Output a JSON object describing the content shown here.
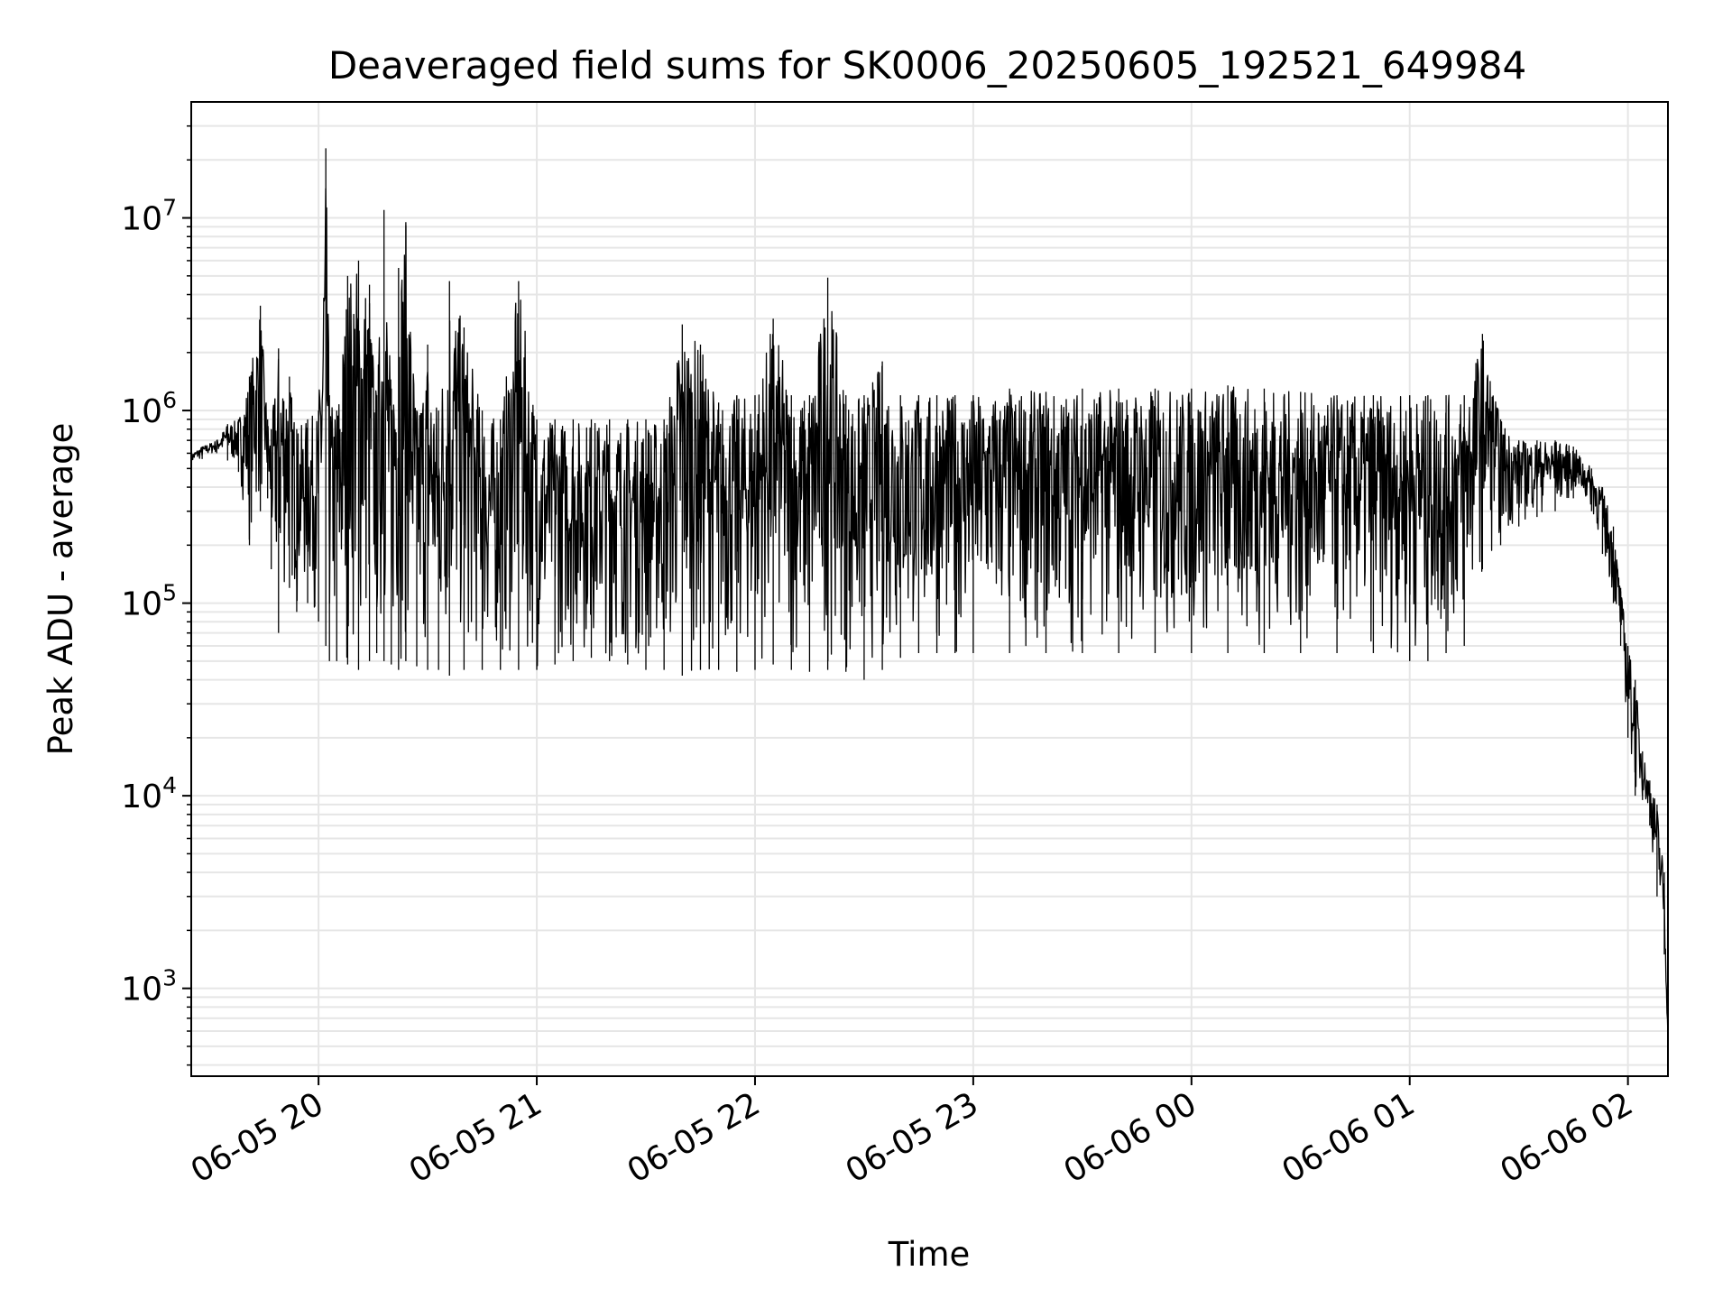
{
  "chart_data": {
    "type": "line",
    "title": "Deaveraged field sums for SK0006_20250605_192521_649984",
    "xlabel": "Time",
    "ylabel": "Peak ADU - average",
    "y_scale": "log",
    "xlim": [
      "2025-06-05T19:25",
      "2025-06-06T02:11"
    ],
    "ylim": [
      350,
      40000000
    ],
    "x_ticks": [
      {
        "time": "2025-06-05T20:00",
        "label": "06-05 20"
      },
      {
        "time": "2025-06-05T21:00",
        "label": "06-05 21"
      },
      {
        "time": "2025-06-05T22:00",
        "label": "06-05 22"
      },
      {
        "time": "2025-06-05T23:00",
        "label": "06-05 23"
      },
      {
        "time": "2025-06-06T00:00",
        "label": "06-06 00"
      },
      {
        "time": "2025-06-06T01:00",
        "label": "06-06 01"
      },
      {
        "time": "2025-06-06T02:00",
        "label": "06-06 02"
      }
    ],
    "y_ticks": [
      {
        "value": 1000,
        "base": "10",
        "exp": "3"
      },
      {
        "value": 10000,
        "base": "10",
        "exp": "4"
      },
      {
        "value": 100000,
        "base": "10",
        "exp": "5"
      },
      {
        "value": 1000000,
        "base": "10",
        "exp": "6"
      },
      {
        "value": 10000000,
        "base": "10",
        "exp": "7"
      }
    ],
    "grid": true,
    "line_color": "#000000",
    "grid_color": "#e6e6e6",
    "series": [
      {
        "x": [
          "2025-06-05T19:25",
          "2025-06-05T19:28",
          "2025-06-05T19:32",
          "2025-06-05T19:35",
          "2025-06-05T19:38",
          "2025-06-05T19:41",
          "2025-06-05T19:44",
          "2025-06-05T19:46",
          "2025-06-05T19:47",
          "2025-06-05T19:49",
          "2025-06-05T19:52",
          "2025-06-05T19:54",
          "2025-06-05T19:57",
          "2025-06-05T20:00",
          "2025-06-05T20:02",
          "2025-06-05T20:03",
          "2025-06-05T20:05",
          "2025-06-05T20:08",
          "2025-06-05T20:11",
          "2025-06-05T20:14",
          "2025-06-05T20:16",
          "2025-06-05T20:18",
          "2025-06-05T20:20",
          "2025-06-05T20:22",
          "2025-06-05T20:24",
          "2025-06-05T20:27",
          "2025-06-05T20:30",
          "2025-06-05T20:33",
          "2025-06-05T20:36",
          "2025-06-05T20:40",
          "2025-06-05T20:45",
          "2025-06-05T20:50",
          "2025-06-05T20:55",
          "2025-06-05T21:00",
          "2025-06-05T21:05",
          "2025-06-05T21:10",
          "2025-06-05T21:15",
          "2025-06-05T21:20",
          "2025-06-05T21:25",
          "2025-06-05T21:30",
          "2025-06-05T21:35",
          "2025-06-05T21:40",
          "2025-06-05T21:45",
          "2025-06-05T21:50",
          "2025-06-05T21:55",
          "2025-06-05T22:00",
          "2025-06-05T22:05",
          "2025-06-05T22:10",
          "2025-06-05T22:15",
          "2025-06-05T22:20",
          "2025-06-05T22:25",
          "2025-06-05T22:30",
          "2025-06-05T22:35",
          "2025-06-05T22:40",
          "2025-06-05T22:45",
          "2025-06-05T22:50",
          "2025-06-05T22:55",
          "2025-06-05T23:00",
          "2025-06-05T23:10",
          "2025-06-05T23:20",
          "2025-06-05T23:30",
          "2025-06-05T23:40",
          "2025-06-05T23:50",
          "2025-06-06T00:00",
          "2025-06-06T00:10",
          "2025-06-06T00:20",
          "2025-06-06T00:30",
          "2025-06-06T00:40",
          "2025-06-06T00:50",
          "2025-06-06T01:00",
          "2025-06-06T01:05",
          "2025-06-06T01:10",
          "2025-06-06T01:15",
          "2025-06-06T01:20",
          "2025-06-06T01:25",
          "2025-06-06T01:30",
          "2025-06-06T01:35",
          "2025-06-06T01:40",
          "2025-06-06T01:45",
          "2025-06-06T01:50",
          "2025-06-06T01:53",
          "2025-06-06T01:56",
          "2025-06-06T01:58",
          "2025-06-06T02:00",
          "2025-06-06T02:02",
          "2025-06-06T02:04",
          "2025-06-06T02:06",
          "2025-06-06T02:08",
          "2025-06-06T02:10",
          "2025-06-06T02:11"
        ],
        "upper": [
          600000,
          650000,
          700000,
          850000,
          900000,
          1500000,
          3500000,
          900000,
          800000,
          2100000,
          1500000,
          800000,
          900000,
          1000000,
          23000000,
          1200000,
          1000000,
          5000000,
          6000000,
          4500000,
          1200000,
          11000000,
          1300000,
          5500000,
          9500000,
          1000000,
          2200000,
          1000000,
          4700000,
          2700000,
          1000000,
          900000,
          4700000,
          900000,
          900000,
          900000,
          900000,
          900000,
          900000,
          900000,
          900000,
          2800000,
          2200000,
          1100000,
          1200000,
          1200000,
          3000000,
          1200000,
          1200000,
          4900000,
          1200000,
          1200000,
          1800000,
          1200000,
          1200000,
          1200000,
          1200000,
          1200000,
          1300000,
          1250000,
          1300000,
          1300000,
          1300000,
          1300000,
          1350000,
          1300000,
          1250000,
          1200000,
          1200000,
          1200000,
          1200000,
          1200000,
          1200000,
          2500000,
          900000,
          700000,
          700000,
          700000,
          650000,
          500000,
          400000,
          250000,
          120000,
          60000,
          40000,
          17000,
          12000,
          9000,
          4000,
          550
        ],
        "lower": [
          520000,
          560000,
          600000,
          550000,
          480000,
          200000,
          300000,
          350000,
          150000,
          70000,
          120000,
          90000,
          100000,
          80000,
          60000,
          50000,
          50000,
          48000,
          45000,
          50000,
          55000,
          50000,
          48000,
          45000,
          50000,
          47000,
          45000,
          45000,
          42000,
          45000,
          45000,
          45000,
          45000,
          45000,
          48000,
          50000,
          52000,
          50000,
          48000,
          45000,
          45000,
          42000,
          45000,
          45000,
          44000,
          45000,
          48000,
          45000,
          44000,
          45000,
          44000,
          40000,
          45000,
          52000,
          55000,
          55000,
          55000,
          55000,
          55000,
          55000,
          55000,
          55000,
          55000,
          55000,
          55000,
          55000,
          55000,
          55000,
          55000,
          50000,
          50000,
          55000,
          60000,
          150000,
          200000,
          250000,
          280000,
          300000,
          350000,
          300000,
          180000,
          100000,
          60000,
          20000,
          10000,
          9500,
          7000,
          3000,
          1500,
          550
        ]
      }
    ]
  }
}
